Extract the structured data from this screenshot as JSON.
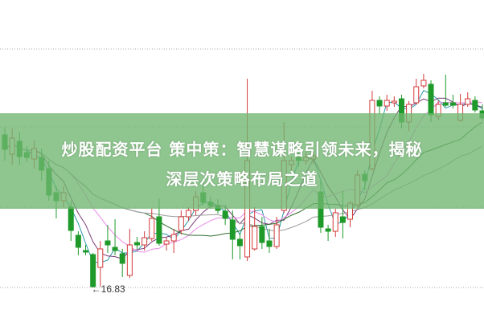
{
  "headline": {
    "line1": "炒股配资平台 策中策：智慧谋略引领未来，揭秘",
    "line2": "深层次策略布局之道"
  },
  "colors": {
    "up": "#d23a3a",
    "down": "#1f9a2a",
    "banner": "#70b670",
    "ma": [
      "#2a9aa6",
      "#7a3a78",
      "#e98be9",
      "#2e6e2e",
      "#9a9a9a"
    ]
  },
  "chart_data": {
    "type": "candlestick",
    "title": "",
    "xlabel": "",
    "ylabel": "",
    "ylim": [
      16.4,
      20.41
    ],
    "grid": "horizontal-dotted",
    "annotation": {
      "text": "←16.83",
      "value": 16.83
    },
    "candles": [
      [
        18.73,
        18.83,
        18.41,
        18.55
      ],
      [
        18.49,
        18.81,
        18.36,
        18.69
      ],
      [
        18.65,
        18.76,
        18.36,
        18.46
      ],
      [
        18.51,
        18.59,
        18.39,
        18.45
      ],
      [
        18.43,
        18.66,
        18.31,
        18.56
      ],
      [
        18.45,
        18.56,
        18.16,
        18.29
      ],
      [
        18.31,
        18.41,
        17.91,
        17.98
      ],
      [
        18.01,
        18.09,
        17.69,
        17.91
      ],
      [
        17.91,
        18.09,
        17.83,
        18.01
      ],
      [
        17.83,
        17.91,
        17.41,
        17.54
      ],
      [
        17.48,
        17.53,
        17.23,
        17.33
      ],
      [
        17.29,
        17.36,
        17.23,
        17.27
      ],
      [
        17.24,
        17.26,
        16.83,
        16.84
      ],
      [
        17.08,
        17.41,
        16.84,
        17.31
      ],
      [
        17.41,
        17.61,
        17.26,
        17.36
      ],
      [
        17.33,
        17.68,
        17.23,
        17.29
      ],
      [
        17.25,
        17.31,
        16.96,
        17.13
      ],
      [
        16.98,
        17.56,
        16.95,
        17.36
      ],
      [
        17.39,
        17.46,
        17.31,
        17.36
      ],
      [
        17.36,
        17.53,
        17.29,
        17.45
      ],
      [
        17.44,
        17.81,
        17.41,
        17.69
      ],
      [
        17.71,
        17.94,
        17.35,
        17.38
      ],
      [
        17.37,
        17.45,
        17.29,
        17.41
      ],
      [
        17.41,
        17.56,
        17.26,
        17.49
      ],
      [
        17.54,
        17.79,
        17.49,
        17.71
      ],
      [
        17.71,
        17.83,
        17.66,
        17.79
      ],
      [
        17.79,
        18.03,
        17.73,
        17.96
      ],
      [
        18.01,
        18.16,
        17.85,
        17.89
      ],
      [
        17.89,
        17.96,
        17.81,
        17.85
      ],
      [
        17.85,
        17.93,
        17.75,
        17.79
      ],
      [
        17.78,
        17.86,
        17.61,
        17.69
      ],
      [
        17.67,
        17.79,
        17.18,
        17.43
      ],
      [
        17.43,
        17.51,
        17.18,
        17.35
      ],
      [
        17.21,
        19.43,
        17.16,
        18.41
      ],
      [
        17.31,
        17.83,
        17.29,
        17.59
      ],
      [
        17.59,
        17.71,
        17.31,
        17.39
      ],
      [
        17.41,
        17.56,
        17.26,
        17.34
      ],
      [
        17.34,
        17.71,
        17.31,
        17.61
      ],
      [
        17.79,
        18.89,
        17.76,
        18.41
      ],
      [
        18.36,
        18.46,
        18.28,
        18.41
      ],
      [
        18.45,
        18.51,
        18.33,
        18.41
      ],
      [
        18.41,
        18.51,
        18.36,
        18.45
      ],
      [
        18.43,
        18.53,
        18.36,
        18.47
      ],
      [
        18.02,
        18.16,
        17.51,
        17.58
      ],
      [
        17.56,
        17.61,
        17.41,
        17.53
      ],
      [
        17.53,
        17.81,
        17.46,
        17.76
      ],
      [
        17.71,
        18.03,
        17.44,
        17.64
      ],
      [
        17.68,
        17.91,
        17.58,
        17.88
      ],
      [
        17.86,
        18.29,
        17.83,
        18.23
      ],
      [
        18.24,
        18.29,
        18.04,
        18.16
      ],
      [
        18.31,
        19.28,
        18.28,
        19.16
      ],
      [
        19.16,
        19.21,
        18.99,
        19.09
      ],
      [
        19.09,
        19.23,
        19.03,
        19.16
      ],
      [
        19.13,
        19.21,
        19.08,
        19.15
      ],
      [
        19.18,
        19.23,
        18.81,
        18.89
      ],
      [
        18.89,
        19.15,
        18.78,
        19.11
      ],
      [
        19.13,
        19.43,
        19.11,
        19.33
      ],
      [
        19.34,
        19.49,
        19.31,
        19.41
      ],
      [
        19.36,
        19.41,
        18.89,
        18.98
      ],
      [
        18.96,
        19.16,
        18.91,
        19.11
      ],
      [
        19.13,
        19.48,
        19.08,
        19.1
      ],
      [
        19.13,
        19.23,
        19.06,
        19.1
      ],
      [
        18.91,
        19.24,
        18.89,
        19.11
      ],
      [
        19.11,
        19.26,
        19.08,
        19.18
      ],
      [
        19.16,
        19.21,
        19.01,
        19.04
      ],
      [
        19.03,
        19.11,
        18.91,
        18.94
      ]
    ]
  }
}
